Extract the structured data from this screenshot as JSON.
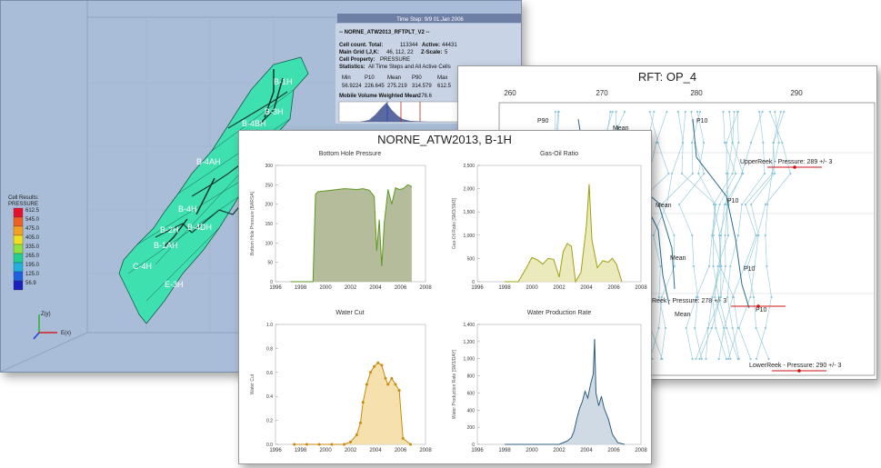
{
  "viewer3d": {
    "time_step": "Time Step: 9/9 01.Jan 2006",
    "case_name": "-- NORNE_ATW2013_RFTPLT_V2 --",
    "cell_count_label": "Cell count. Total:",
    "cell_count_total": "113344",
    "active_label": "Active:",
    "active_value": "44431",
    "main_grid_label": "Main Grid I,J,K:",
    "main_grid_value": "46, 112, 22",
    "zscale_label": "Z-Scale:",
    "zscale_value": "5",
    "cell_property_label": "Cell Property:",
    "cell_property_value": "PRESSURE",
    "statistics_label": "Statistics:",
    "statistics_value": "All Time Steps and All Active Cells",
    "stats_headers": [
      "Min",
      "P10",
      "Mean",
      "P90",
      "Max"
    ],
    "stats_values": [
      "56.9224",
      "226.645",
      "275.219",
      "314.579",
      "612.5"
    ],
    "mobile_volume_label": "Mobile Volume Weighted Mean:",
    "mobile_volume_value": "276.6",
    "legend_title_1": "Cell Results:",
    "legend_title_2": "PRESSURE",
    "legend_values": [
      "612.5",
      "545.0",
      "475.0",
      "405.0",
      "335.0",
      "265.0",
      "195.0",
      "125.0",
      "56.9"
    ],
    "legend_colors": [
      "#e8102a",
      "#f06020",
      "#f6a020",
      "#f0e020",
      "#90e040",
      "#20d090",
      "#20b0e0",
      "#2060e0",
      "#1a20c0"
    ],
    "axis_z": "Z(y)",
    "axis_x": "E(x)",
    "well_labels": [
      "B-1H",
      "B-3H",
      "B-4AH",
      "B-4H",
      "B-2H",
      "B-1AH",
      "B-4DH",
      "B-4BH",
      "E-3H",
      "C-4H"
    ],
    "model_color": "#3fe0b0"
  },
  "rft": {
    "title": "RFT: OP_4",
    "x_ticks": [
      "260",
      "270",
      "280",
      "290"
    ],
    "labels": {
      "p90": "P90",
      "mean": "Mean",
      "p10": "P10",
      "upper_reek": "UpperReek - Pressure: 289 +/- 3",
      "mid_reek": "Reek - Pressure: 278 +/- 3",
      "lower_reek": "LowerReek - Pressure: 290 +/- 3"
    },
    "line_color": "#8cc6d8",
    "stat_color": "#2a6e8e",
    "marker_color": "#cc1010"
  },
  "well": {
    "title": "NORNE_ATW2013, B-1H",
    "x_ticks": [
      "1996",
      "1998",
      "2000",
      "2002",
      "2004",
      "2006",
      "2008"
    ],
    "plots": [
      {
        "id": "bhp",
        "title": "Bottom Hole Pressure",
        "ylabel": "Bottom Hole Pressure [BARSA]",
        "y_ticks": [
          "300",
          "250",
          "200",
          "150",
          "100",
          "50",
          "0"
        ],
        "color": "#5e9a1e",
        "fill": "#a8b08a"
      },
      {
        "id": "gor",
        "title": "Gas-Oil Ratio",
        "ylabel": "Gas-Oil Ratio [SM3/SM3]",
        "y_ticks": [
          "2,500",
          "2,000",
          "1,500",
          "1,000",
          "500",
          "0"
        ],
        "color": "#a0a010",
        "fill": "#e8e6b0"
      },
      {
        "id": "wct",
        "title": "Water Cut",
        "ylabel": "Water Cut",
        "y_ticks": [
          "1.0",
          "0.8",
          "0.6",
          "0.4",
          "0.2",
          "0.0"
        ],
        "color": "#c88a10",
        "fill": "#f4dca0"
      },
      {
        "id": "wpr",
        "title": "Water Production Rate",
        "ylabel": "Water Production Rate [SM3/DAY]",
        "y_ticks": [
          "1,400",
          "1,200",
          "1,000",
          "800",
          "600",
          "400",
          "200",
          "0"
        ],
        "color": "#2e5e7e",
        "fill": "#c8d4e0"
      }
    ]
  },
  "chart_data": [
    {
      "type": "area",
      "title": "Bottom Hole Pressure",
      "ylabel": "Bottom Hole Pressure [BARSA]",
      "xlim": [
        1996,
        2008
      ],
      "ylim": [
        0,
        300
      ],
      "x": [
        1997.2,
        1999.0,
        1999.2,
        1999.4,
        2000.5,
        2001.5,
        2002.5,
        2003.0,
        2003.5,
        2003.9,
        2004.1,
        2004.3,
        2004.5,
        2004.7,
        2005.0,
        2005.3,
        2005.6,
        2005.9,
        2006.2,
        2006.6,
        2006.9
      ],
      "values": [
        0,
        0,
        225,
        232,
        236,
        240,
        238,
        240,
        236,
        220,
        80,
        160,
        40,
        150,
        238,
        200,
        242,
        238,
        240,
        250,
        245
      ]
    },
    {
      "type": "area",
      "title": "Gas-Oil Ratio",
      "ylabel": "Gas-Oil Ratio [SM3/SM3]",
      "xlim": [
        1996,
        2008
      ],
      "ylim": [
        0,
        2500
      ],
      "x": [
        1998.0,
        1999.0,
        1999.3,
        1999.6,
        2000.0,
        2000.4,
        2000.8,
        2001.2,
        2001.6,
        2002.0,
        2002.3,
        2002.6,
        2002.9,
        2003.2,
        2003.6,
        2004.0,
        2004.2,
        2004.4,
        2004.6,
        2004.8,
        2005.2,
        2005.6,
        2005.9,
        2006.2,
        2006.6
      ],
      "values": [
        0,
        0,
        150,
        300,
        520,
        470,
        380,
        500,
        480,
        100,
        650,
        820,
        760,
        0,
        200,
        1200,
        2100,
        900,
        600,
        300,
        450,
        420,
        500,
        380,
        0
      ]
    },
    {
      "type": "area",
      "title": "Water Cut",
      "ylabel": "Water Cut",
      "xlim": [
        1996,
        2008
      ],
      "ylim": [
        0,
        1.0
      ],
      "x": [
        1997.5,
        1998.5,
        1999.5,
        2000.5,
        2001.5,
        2002.0,
        2002.5,
        2002.8,
        2003.0,
        2003.3,
        2003.6,
        2003.9,
        2004.2,
        2004.5,
        2004.8,
        2005.0,
        2005.3,
        2005.6,
        2005.9,
        2006.2,
        2006.8
      ],
      "values": [
        0,
        0,
        0,
        0,
        0,
        0.02,
        0.08,
        0.18,
        0.35,
        0.5,
        0.6,
        0.65,
        0.68,
        0.66,
        0.55,
        0.5,
        0.55,
        0.5,
        0.45,
        0.05,
        0
      ]
    },
    {
      "type": "area",
      "title": "Water Production Rate",
      "ylabel": "Water Production Rate [SM3/DAY]",
      "xlim": [
        1996,
        2008
      ],
      "ylim": [
        0,
        1400
      ],
      "x": [
        1998.0,
        2002.0,
        2002.3,
        2002.6,
        2002.9,
        2003.1,
        2003.3,
        2003.5,
        2003.7,
        2003.9,
        2004.1,
        2004.3,
        2004.5,
        2004.6,
        2004.7,
        2004.9,
        2005.1,
        2005.3,
        2005.6,
        2005.9,
        2006.3,
        2006.8
      ],
      "values": [
        0,
        0,
        20,
        40,
        80,
        160,
        300,
        420,
        500,
        620,
        540,
        700,
        820,
        1230,
        600,
        450,
        560,
        420,
        300,
        120,
        20,
        0
      ]
    }
  ]
}
